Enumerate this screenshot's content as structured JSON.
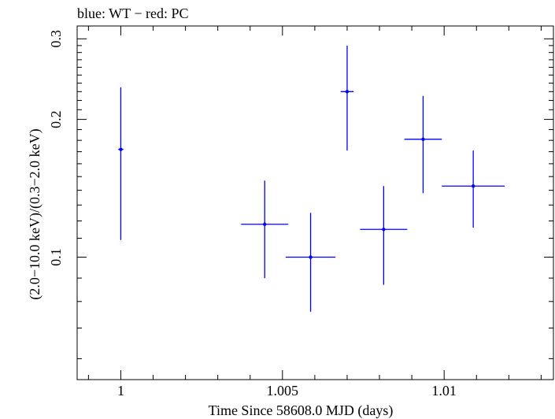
{
  "chart_data": {
    "type": "scatter",
    "title": "blue: WT − red: PC",
    "xlabel": "Time Since 58608.0 MJD (days)",
    "ylabel": "(2.0−10.0 keV)/(0.3−2.0 keV)",
    "xlim": [
      0.99865,
      1.01338
    ],
    "ylim": [
      0.054,
      0.32
    ],
    "y_scale": "log",
    "x_ticks": [
      {
        "value": 1.0,
        "label": "1"
      },
      {
        "value": 1.005,
        "label": "1.005"
      },
      {
        "value": 1.01,
        "label": "1.01"
      }
    ],
    "y_ticks": [
      {
        "value": 0.1,
        "label": "0.1"
      },
      {
        "value": 0.2,
        "label": "0.2"
      },
      {
        "value": 0.3,
        "label": "0.3"
      }
    ],
    "grid": false,
    "series": [
      {
        "color": "#0000ff",
        "points": [
          {
            "x": 1.0,
            "xerr": 8e-05,
            "y": 0.172,
            "ylo": 0.109,
            "yhi": 0.235
          },
          {
            "x": 1.00445,
            "xerr": 0.00073,
            "y": 0.118,
            "ylo": 0.09,
            "yhi": 0.147
          },
          {
            "x": 1.00587,
            "xerr": 0.00077,
            "y": 0.1,
            "ylo": 0.076,
            "yhi": 0.125
          },
          {
            "x": 1.007,
            "xerr": 0.0002,
            "y": 0.23,
            "ylo": 0.171,
            "yhi": 0.29
          },
          {
            "x": 1.00813,
            "xerr": 0.00073,
            "y": 0.115,
            "ylo": 0.087,
            "yhi": 0.143
          },
          {
            "x": 1.00935,
            "xerr": 0.00058,
            "y": 0.181,
            "ylo": 0.138,
            "yhi": 0.225
          },
          {
            "x": 1.0109,
            "xerr": 0.00097,
            "y": 0.143,
            "ylo": 0.116,
            "yhi": 0.171
          }
        ]
      }
    ]
  }
}
